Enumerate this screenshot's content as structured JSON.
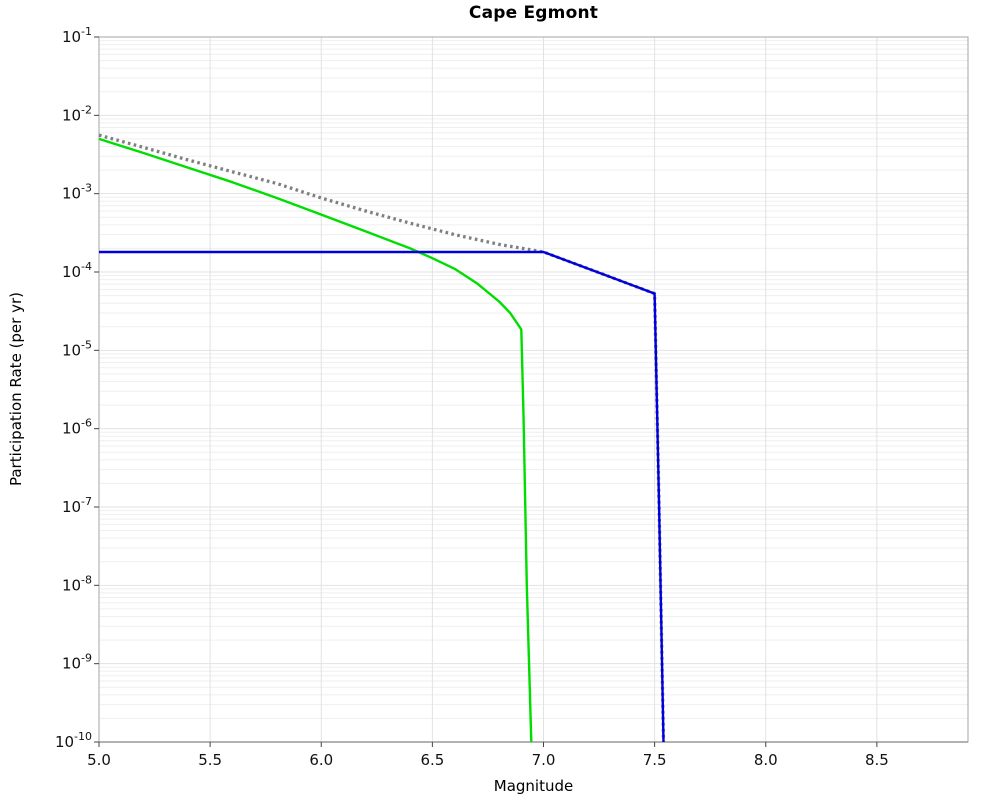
{
  "chart_data": {
    "type": "line",
    "title": "Cape Egmont",
    "xlabel": "Magnitude",
    "ylabel": "Participation Rate (per yr)",
    "xlim": [
      5.0,
      8.91
    ],
    "ylim": [
      1e-10,
      0.1
    ],
    "xtick_values": [
      5.0,
      5.5,
      6.0,
      6.5,
      7.0,
      7.5,
      8.0,
      8.5
    ],
    "xtick_labels": [
      "5.0",
      "5.5",
      "6.0",
      "6.5",
      "7.0",
      "7.5",
      "8.0",
      "8.5"
    ],
    "ytick_exponents": [
      -1,
      -2,
      -3,
      -4,
      -5,
      -6,
      -7,
      -8,
      -9,
      -10
    ],
    "grid": {
      "major": true,
      "minor": true,
      "major_color": "#e2e2e2",
      "minor_color": "#efefef"
    },
    "legend_position": "none",
    "axis_border_color": "#b3b3b3",
    "series": [
      {
        "id": "green-solid",
        "color": "#00dd00",
        "style": "solid",
        "points": [
          [
            5.0,
            0.005
          ],
          [
            5.2,
            0.0033
          ],
          [
            5.4,
            0.00215
          ],
          [
            5.6,
            0.0014
          ],
          [
            5.8,
            0.00088
          ],
          [
            6.0,
            0.00054
          ],
          [
            6.2,
            0.00033
          ],
          [
            6.4,
            0.0002
          ],
          [
            6.5,
            0.00015
          ],
          [
            6.6,
            0.00011
          ],
          [
            6.7,
            7.2e-05
          ],
          [
            6.8,
            4.2e-05
          ],
          [
            6.85,
            3e-05
          ],
          [
            6.9,
            1.85e-05
          ],
          [
            6.91,
            1.5e-06
          ],
          [
            6.925,
            1e-08
          ],
          [
            6.945,
            1e-10
          ]
        ]
      },
      {
        "id": "gray-dotted",
        "color": "#7f7f7f",
        "style": "dotted",
        "points": [
          [
            5.0,
            0.0056
          ],
          [
            5.2,
            0.0039
          ],
          [
            5.4,
            0.0027
          ],
          [
            5.6,
            0.0019
          ],
          [
            5.8,
            0.00135
          ],
          [
            6.0,
            0.00088
          ],
          [
            6.2,
            0.0006
          ],
          [
            6.4,
            0.00042
          ],
          [
            6.6,
            0.0003
          ],
          [
            6.8,
            0.000225
          ],
          [
            7.0,
            0.00018
          ],
          [
            7.25,
            9.8e-05
          ],
          [
            7.5,
            5.3e-05
          ],
          [
            7.52,
            1e-07
          ],
          [
            7.54,
            1e-10
          ]
        ]
      },
      {
        "id": "blue-solid",
        "color": "#0000dd",
        "style": "solid",
        "points": [
          [
            5.0,
            0.00018
          ],
          [
            7.0,
            0.00018
          ],
          [
            7.25,
            9.8e-05
          ],
          [
            7.5,
            5.3e-05
          ],
          [
            7.52,
            1e-07
          ],
          [
            7.54,
            1e-10
          ]
        ]
      }
    ]
  }
}
